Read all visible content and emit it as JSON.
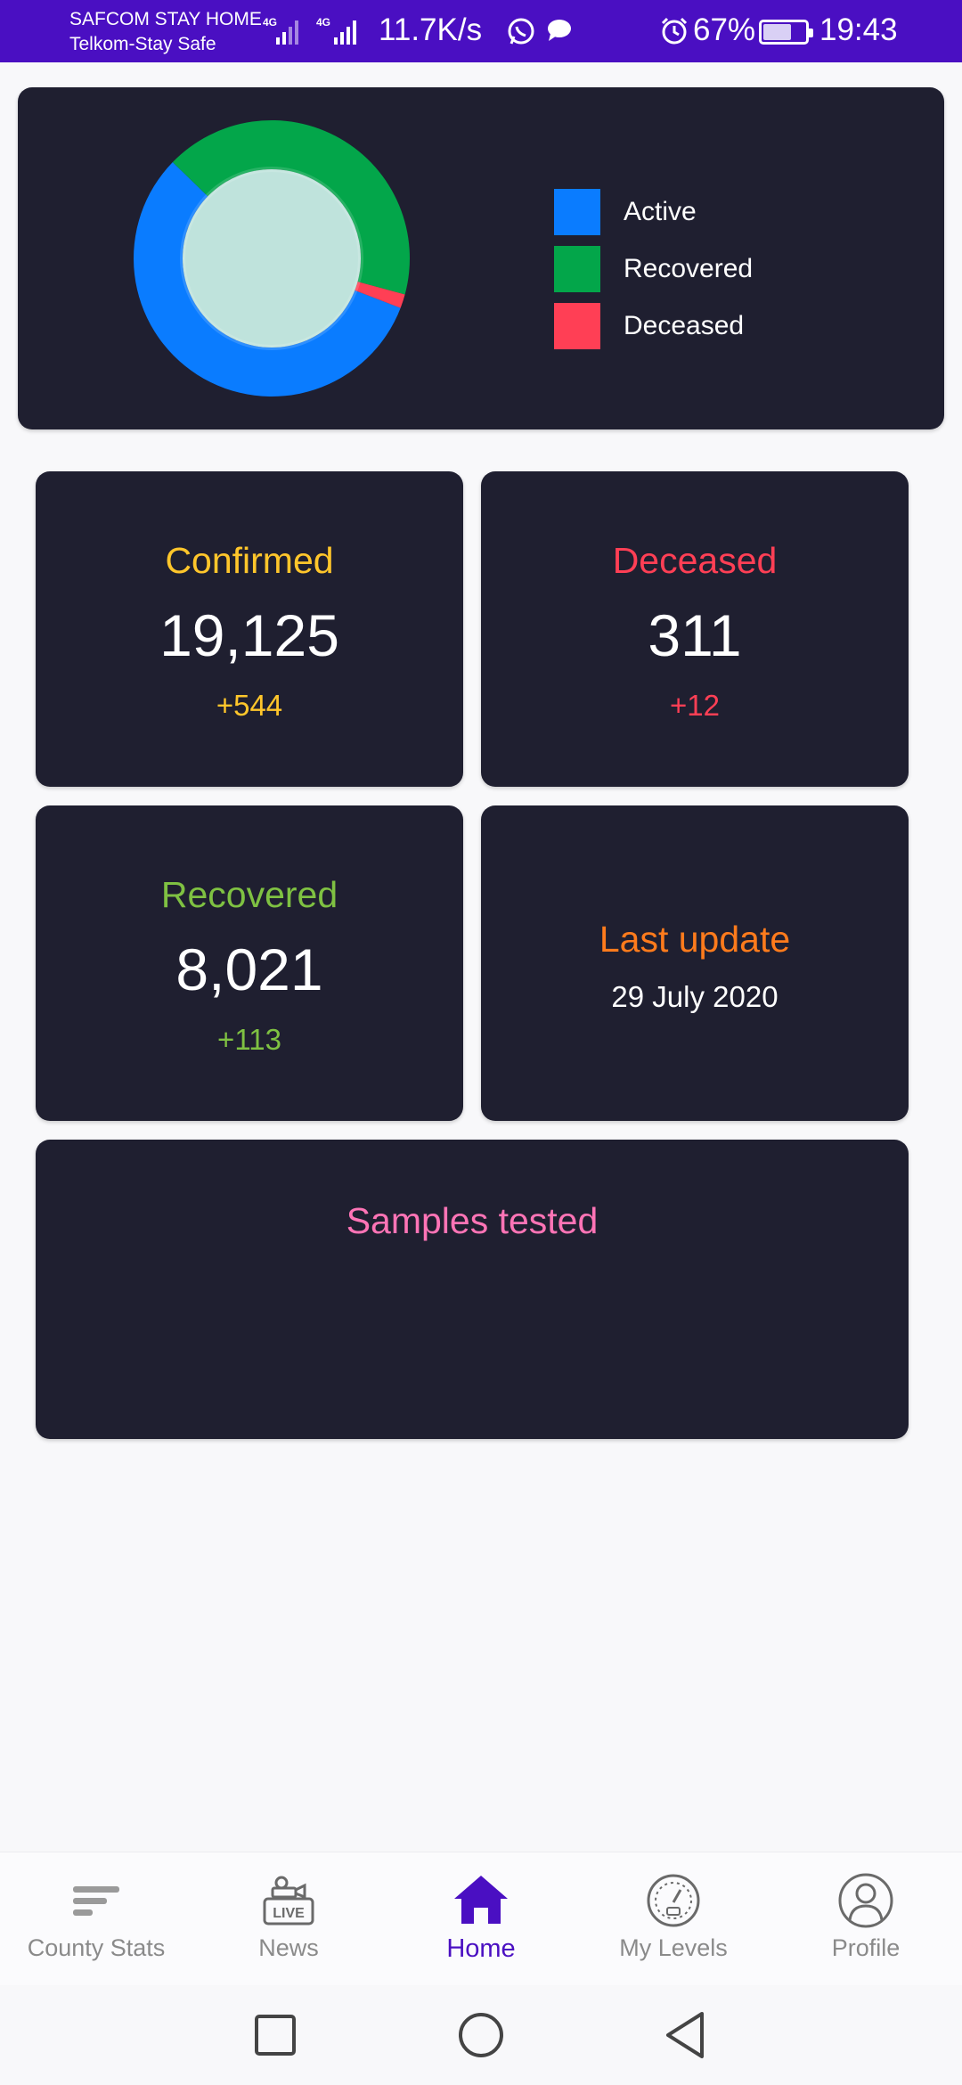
{
  "status_bar": {
    "carrier_1": "SAFCOM STAY HOME",
    "carrier_2": "Telkom-Stay Safe",
    "network_1": "4G",
    "network_2": "4G",
    "net_speed": "11.7K/s",
    "battery": "67%",
    "battery_level": 0.67,
    "time": "19:43"
  },
  "chart_data": {
    "type": "pie",
    "title": "",
    "categories": [
      "Active",
      "Recovered",
      "Deceased"
    ],
    "values": [
      10793,
      8021,
      311
    ],
    "colors": [
      "#0a7cff",
      "#03a64a",
      "#ff3f55"
    ],
    "hole": true
  },
  "stats": {
    "confirmed": {
      "title": "Confirmed",
      "value": "19,125",
      "delta": "+544",
      "color": "#ffc62b"
    },
    "deceased": {
      "title": "Deceased",
      "value": "311",
      "delta": "+12",
      "color": "#ff3f55"
    },
    "recovered": {
      "title": "Recovered",
      "value": "8,021",
      "delta": "+113",
      "color": "#7fc142"
    },
    "last_update": {
      "title": "Last update",
      "date": "29 July 2020",
      "color": "#ff7b1c"
    },
    "samples": {
      "title": "Samples tested",
      "color": "#ff74b6"
    }
  },
  "nav": {
    "items": [
      {
        "label": "County Stats",
        "icon": "sort-lines-icon"
      },
      {
        "label": "News",
        "icon": "live-camera-icon"
      },
      {
        "label": "Home",
        "icon": "home-icon",
        "active": true
      },
      {
        "label": "My Levels",
        "icon": "gauge-icon"
      },
      {
        "label": "Profile",
        "icon": "profile-icon"
      }
    ],
    "active_color": "#4a0fc2"
  }
}
